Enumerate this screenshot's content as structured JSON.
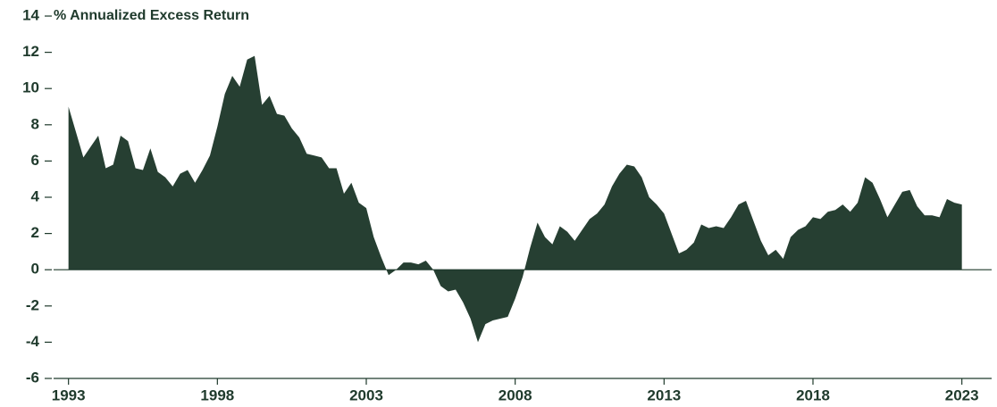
{
  "chart_data": {
    "type": "area",
    "title": "% Annualized Excess Return",
    "color": "#263f32",
    "xlim": [
      1992.5,
      2024
    ],
    "xticks": [
      1993,
      1998,
      2003,
      2008,
      2013,
      2018,
      2023
    ],
    "ylim": [
      -6,
      14
    ],
    "yticks": [
      -6,
      -4,
      -2,
      0,
      2,
      4,
      6,
      8,
      10,
      12,
      14
    ],
    "x": [
      1993.0,
      1993.25,
      1993.5,
      1993.75,
      1994.0,
      1994.25,
      1994.5,
      1994.75,
      1995.0,
      1995.25,
      1995.5,
      1995.75,
      1996.0,
      1996.25,
      1996.5,
      1996.75,
      1997.0,
      1997.25,
      1997.5,
      1997.75,
      1998.0,
      1998.25,
      1998.5,
      1998.75,
      1999.0,
      1999.25,
      1999.5,
      1999.75,
      2000.0,
      2000.25,
      2000.5,
      2000.75,
      2001.0,
      2001.25,
      2001.5,
      2001.75,
      2002.0,
      2002.25,
      2002.5,
      2002.75,
      2003.0,
      2003.25,
      2003.5,
      2003.75,
      2004.0,
      2004.25,
      2004.5,
      2004.75,
      2005.0,
      2005.25,
      2005.5,
      2005.75,
      2006.0,
      2006.25,
      2006.5,
      2006.75,
      2007.0,
      2007.25,
      2007.5,
      2007.75,
      2008.0,
      2008.25,
      2008.5,
      2008.75,
      2009.0,
      2009.25,
      2009.5,
      2009.75,
      2010.0,
      2010.25,
      2010.5,
      2010.75,
      2011.0,
      2011.25,
      2011.5,
      2011.75,
      2012.0,
      2012.25,
      2012.5,
      2012.75,
      2013.0,
      2013.25,
      2013.5,
      2013.75,
      2014.0,
      2014.25,
      2014.5,
      2014.75,
      2015.0,
      2015.25,
      2015.5,
      2015.75,
      2016.0,
      2016.25,
      2016.5,
      2016.75,
      2017.0,
      2017.25,
      2017.5,
      2017.75,
      2018.0,
      2018.25,
      2018.5,
      2018.75,
      2019.0,
      2019.25,
      2019.5,
      2019.75,
      2020.0,
      2020.25,
      2020.5,
      2020.75,
      2021.0,
      2021.25,
      2021.5,
      2021.75,
      2022.0,
      2022.25,
      2022.5,
      2022.75,
      2023.0
    ],
    "values": [
      9.0,
      7.6,
      6.2,
      6.8,
      7.4,
      5.6,
      5.8,
      7.4,
      7.1,
      5.6,
      5.5,
      6.7,
      5.4,
      5.1,
      4.6,
      5.3,
      5.5,
      4.8,
      5.5,
      6.3,
      7.9,
      9.7,
      10.7,
      10.1,
      11.6,
      11.8,
      9.1,
      9.6,
      8.6,
      8.5,
      7.8,
      7.3,
      6.4,
      6.3,
      6.2,
      5.6,
      5.6,
      4.2,
      4.8,
      3.7,
      3.4,
      1.8,
      0.7,
      -0.3,
      0.0,
      0.4,
      0.4,
      0.3,
      0.5,
      0.0,
      -0.9,
      -1.2,
      -1.1,
      -1.8,
      -2.7,
      -4.0,
      -3.0,
      -2.8,
      -2.7,
      -2.6,
      -1.6,
      -0.4,
      1.2,
      2.6,
      1.8,
      1.4,
      2.4,
      2.1,
      1.6,
      2.2,
      2.8,
      3.1,
      3.6,
      4.6,
      5.3,
      5.8,
      5.7,
      5.1,
      4.0,
      3.6,
      3.1,
      2.0,
      0.9,
      1.1,
      1.5,
      2.5,
      2.3,
      2.4,
      2.3,
      2.9,
      3.6,
      3.8,
      2.7,
      1.6,
      0.8,
      1.1,
      0.6,
      1.8,
      2.2,
      2.4,
      2.9,
      2.8,
      3.2,
      3.3,
      3.6,
      3.2,
      3.7,
      5.1,
      4.8,
      3.9,
      2.9,
      3.6,
      4.3,
      4.4,
      3.5,
      3.0,
      3.0,
      2.9,
      3.9,
      3.7,
      3.6
    ]
  }
}
